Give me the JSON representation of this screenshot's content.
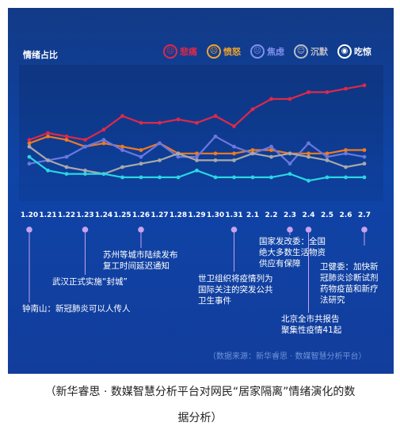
{
  "chart_data": {
    "type": "line",
    "title": "情绪占比",
    "categories": [
      "1.20",
      "1.21",
      "1.22",
      "1.23",
      "1.24",
      "1.25",
      "1.26",
      "1.27",
      "1.28",
      "1.29",
      "1.30",
      "1.31",
      "2.1",
      "2.2",
      "2.3",
      "2.4",
      "2.5",
      "2.6",
      "2.7"
    ],
    "series": [
      {
        "name": "悲痛",
        "color": "#e0284a",
        "values": [
          28,
          30,
          29,
          28,
          31,
          35,
          33,
          33,
          34,
          33,
          35,
          32,
          37,
          40,
          40,
          42,
          42,
          43,
          44
        ]
      },
      {
        "name": "愤怒",
        "color": "#f07a22",
        "values": [
          27,
          29,
          28,
          26,
          27,
          26,
          25,
          27,
          24,
          24,
          24,
          24,
          25,
          25,
          24,
          24,
          24,
          25,
          25
        ]
      },
      {
        "name": "焦虑",
        "color": "#6a78e0",
        "values": [
          21,
          22,
          23,
          26,
          28,
          25,
          23,
          27,
          23,
          23,
          29,
          26,
          24,
          26,
          21,
          27,
          23,
          24,
          23
        ]
      },
      {
        "name": "沉默",
        "color": "#a9a9a9",
        "values": [
          26,
          22,
          20,
          19,
          18,
          20,
          21,
          22,
          24,
          22,
          22,
          22,
          24,
          23,
          24,
          23,
          22,
          20,
          21
        ]
      },
      {
        "name": "吃惊",
        "color": "#2ad6e2",
        "values": [
          23,
          19,
          18,
          18,
          18,
          17,
          17,
          17,
          17,
          19,
          17,
          17,
          17,
          17,
          18,
          16,
          17,
          17,
          17
        ]
      }
    ],
    "ylim": [
      10,
      50
    ],
    "legend_position": "top-right"
  },
  "legend": [
    {
      "label": "悲痛",
      "color": "#e0284a",
      "face": "☹"
    },
    {
      "label": "愤怒",
      "color": "#f0a52a",
      "face": "☹"
    },
    {
      "label": "焦虑",
      "color": "#8090ee",
      "face": "☹"
    },
    {
      "label": "沉默",
      "color": "#b9bcc6",
      "face": "☺"
    },
    {
      "label": "吃惊",
      "color": "#ffffff",
      "face": "◉"
    }
  ],
  "annotations": [
    {
      "text": "钟南山：新冠肺炎可以人传人",
      "date": "1.20"
    },
    {
      "text": "武汉正式实施“封城”",
      "date": "1.23"
    },
    {
      "text": "苏州等城市陆续发布\n复工时间延迟通知",
      "date": "1.26"
    },
    {
      "text": "世卫组织将疫情列为\n国际关注的突发公共\n卫生事件",
      "date": "1.31"
    },
    {
      "text": "国家发改委：全国\n绝大多数生活物资\n供应有保障",
      "date": "2.3"
    },
    {
      "text": "北京全市共报告\n聚集性疫情41起",
      "date": "2.4"
    },
    {
      "text": "卫健委：加快新\n冠肺炎诊断试剂\n药物疫苗和新疗\n法研究",
      "date": "2.7"
    }
  ],
  "source": "（数据来源：新华睿思 · 数媒智慧分析平台）",
  "caption": [
    "（新华睿思 · 数媒智慧分析平台对网民“居家隔离”情绪演化的数",
    "据分析）"
  ]
}
